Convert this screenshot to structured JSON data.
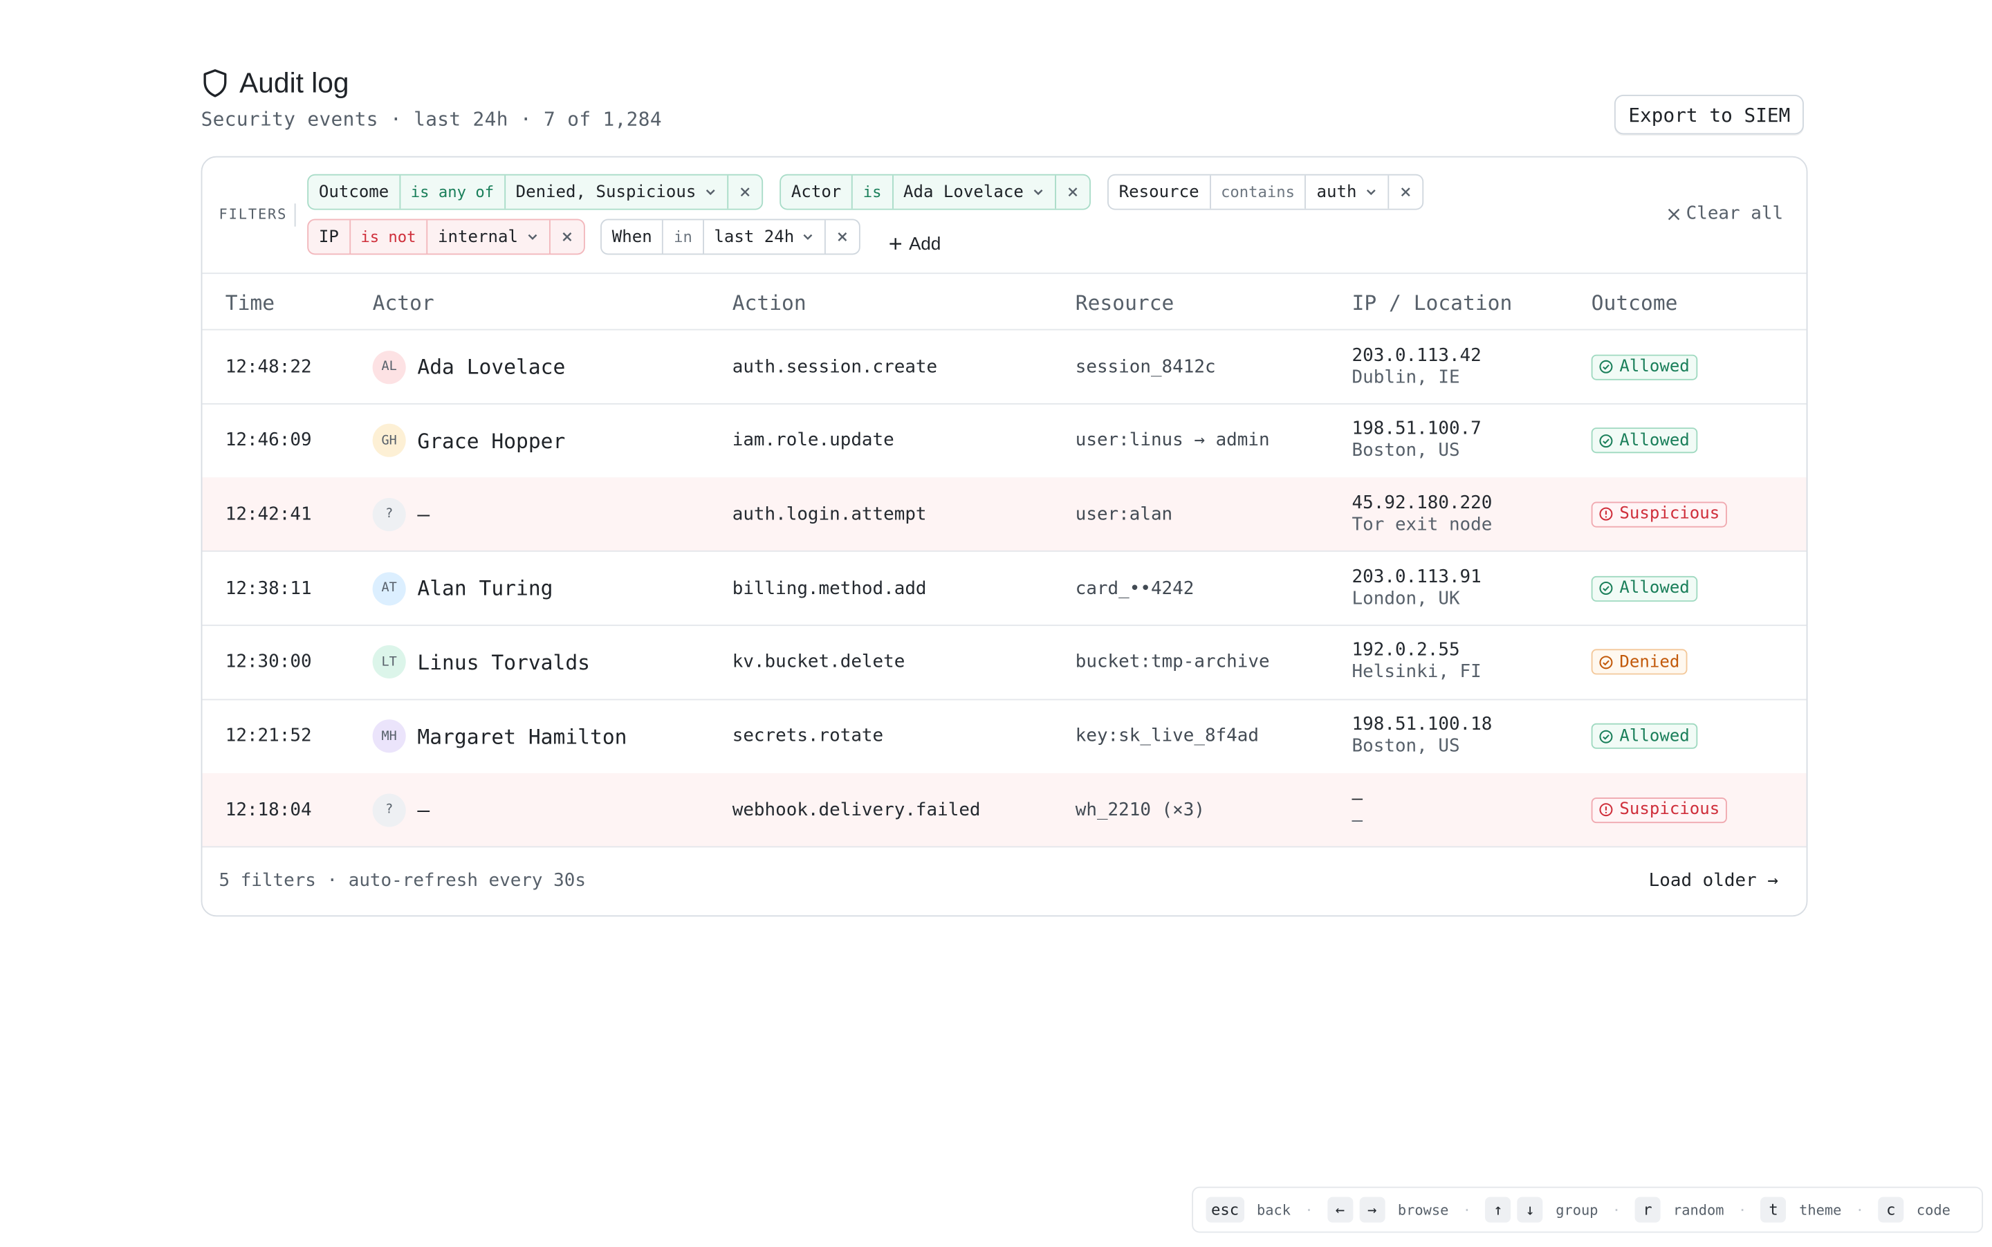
{
  "header": {
    "title": "Audit log",
    "subtitle": "Security events · last 24h · 7 of 1,284",
    "export_label": "Export to SIEM"
  },
  "filters": {
    "label": "FILTERS",
    "chips": [
      {
        "field": "Outcome",
        "op": "is any of",
        "value": "Denied, Suspicious",
        "tone": "green"
      },
      {
        "field": "Actor",
        "op": "is",
        "value": "Ada Lovelace",
        "tone": "green"
      },
      {
        "field": "Resource",
        "op": "contains",
        "value": "auth",
        "tone": "neutral"
      },
      {
        "field": "IP",
        "op": "is not",
        "value": "internal",
        "tone": "red"
      },
      {
        "field": "When",
        "op": "in",
        "value": "last 24h",
        "tone": "neutral"
      }
    ],
    "add_label": "Add",
    "clear_label": "Clear all"
  },
  "table": {
    "columns": [
      "Time",
      "Actor",
      "Action",
      "Resource",
      "IP / Location",
      "Outcome"
    ],
    "rows": [
      {
        "time": "12:48:22",
        "initials": "AL",
        "avatar_color": "#fde2e4",
        "actor": "Ada Lovelace",
        "action": "auth.session.create",
        "resource": "session_8412c",
        "ip": "203.0.113.42",
        "location": "Dublin, IE",
        "outcome": "Allowed",
        "status": "allowed"
      },
      {
        "time": "12:46:09",
        "initials": "GH",
        "avatar_color": "#fdf0d5",
        "actor": "Grace Hopper",
        "action": "iam.role.update",
        "resource": "user:linus → admin",
        "ip": "198.51.100.7",
        "location": "Boston, US",
        "outcome": "Allowed",
        "status": "allowed"
      },
      {
        "time": "12:42:41",
        "initials": "?",
        "avatar_color": "#eef0f3",
        "actor": "—",
        "action": "auth.login.attempt",
        "resource": "user:alan",
        "ip": "45.92.180.220",
        "location": "Tor exit node",
        "outcome": "Suspicious",
        "status": "suspicious"
      },
      {
        "time": "12:38:11",
        "initials": "AT",
        "avatar_color": "#dcefff",
        "actor": "Alan Turing",
        "action": "billing.method.add",
        "resource": "card_••4242",
        "ip": "203.0.113.91",
        "location": "London, UK",
        "outcome": "Allowed",
        "status": "allowed"
      },
      {
        "time": "12:30:00",
        "initials": "LT",
        "avatar_color": "#dcf5ea",
        "actor": "Linus Torvalds",
        "action": "kv.bucket.delete",
        "resource": "bucket:tmp-archive",
        "ip": "192.0.2.55",
        "location": "Helsinki, FI",
        "outcome": "Denied",
        "status": "denied"
      },
      {
        "time": "12:21:52",
        "initials": "MH",
        "avatar_color": "#ebe4fb",
        "actor": "Margaret Hamilton",
        "action": "secrets.rotate",
        "resource": "key:sk_live_8f4ad",
        "ip": "198.51.100.18",
        "location": "Boston, US",
        "outcome": "Allowed",
        "status": "allowed"
      },
      {
        "time": "12:18:04",
        "initials": "?",
        "avatar_color": "#eef0f3",
        "actor": "—",
        "action": "webhook.delivery.failed",
        "resource": "wh_2210 (×3)",
        "ip": "—",
        "location": "—",
        "outcome": "Suspicious",
        "status": "suspicious"
      }
    ]
  },
  "footer": {
    "summary": "5 filters · auto-refresh every 30s",
    "load_older": "Load older →"
  },
  "shortcuts": [
    {
      "keys": [
        "esc"
      ],
      "label": "back"
    },
    {
      "keys": [
        "←",
        "→"
      ],
      "label": "browse"
    },
    {
      "keys": [
        "↑",
        "↓"
      ],
      "label": "group"
    },
    {
      "keys": [
        "r"
      ],
      "label": "random"
    },
    {
      "keys": [
        "t"
      ],
      "label": "theme"
    },
    {
      "keys": [
        "c"
      ],
      "label": "code"
    }
  ],
  "colors": {
    "allowed": "#1a7f5a",
    "suspicious": "#cf2f3b",
    "denied": "#c2590a",
    "alert_row_bg": "#fef4f4"
  }
}
